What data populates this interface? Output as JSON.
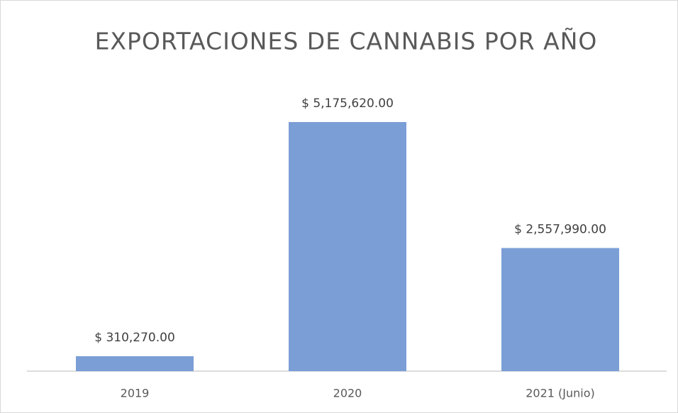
{
  "chart_data": {
    "type": "bar",
    "title": "EXPORTACIONES DE CANNABIS POR AÑO",
    "categories": [
      "2019",
      "2020",
      "2021 (Junio)"
    ],
    "values": [
      310270,
      5175620,
      2557990
    ],
    "value_labels": [
      "$ 310,270.00",
      "$ 5,175,620.00",
      "$ 2,557,990.00"
    ],
    "color": "#7b9ed6"
  }
}
